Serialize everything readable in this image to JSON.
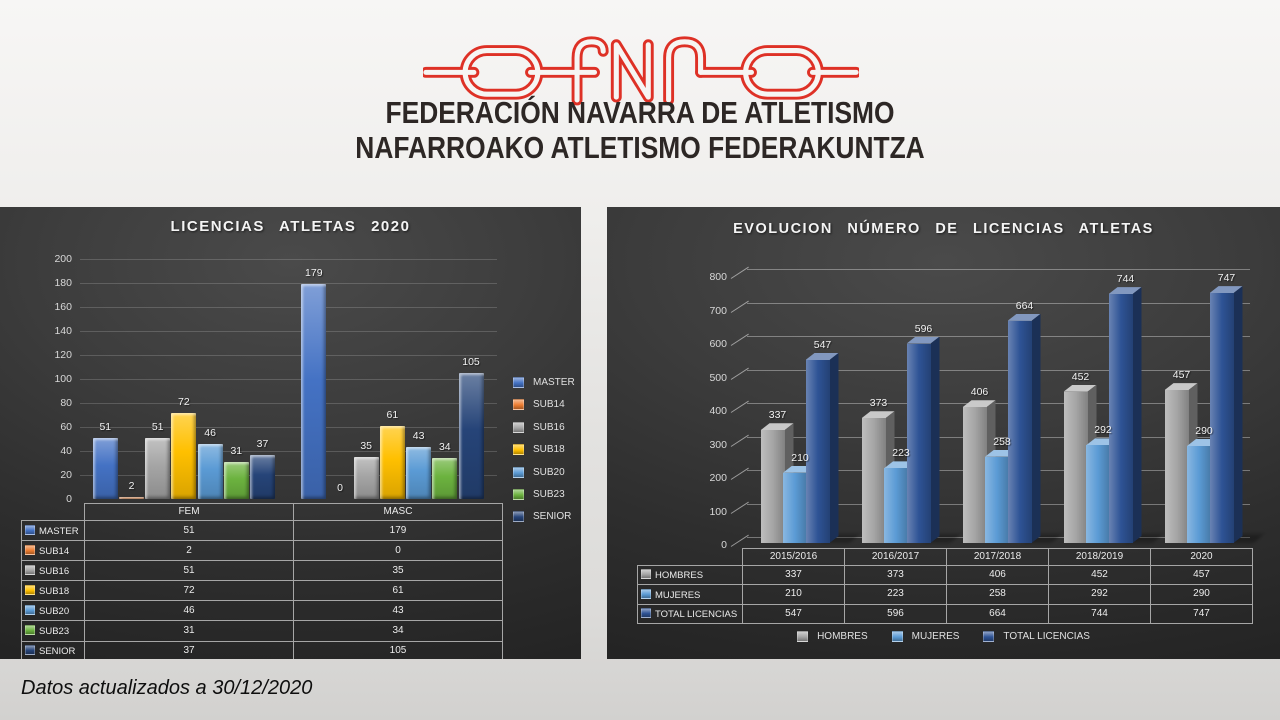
{
  "header": {
    "logo_color": "#DE3126",
    "title_line1": "FEDERACIÓN NAVARRA DE ATLETISMO",
    "title_line2": "NAFARROAKO ATLETISMO FEDERAKUNTZA"
  },
  "footer": {
    "note": "Datos actualizados a 30/12/2020"
  },
  "chart_data": [
    {
      "type": "bar",
      "title": "LICENCIAS ATLETAS 2020",
      "categories": [
        "FEM",
        "MASC"
      ],
      "series": [
        {
          "name": "MASTER",
          "color": "#4472C4",
          "values": [
            51,
            179
          ]
        },
        {
          "name": "SUB14",
          "color": "#ED7D31",
          "values": [
            2,
            0
          ]
        },
        {
          "name": "SUB16",
          "color": "#A5A5A5",
          "values": [
            51,
            35
          ]
        },
        {
          "name": "SUB18",
          "color": "#FFC000",
          "values": [
            72,
            61
          ]
        },
        {
          "name": "SUB20",
          "color": "#5B9BD5",
          "values": [
            46,
            43
          ]
        },
        {
          "name": "SUB23",
          "color": "#6CB33F",
          "values": [
            31,
            34
          ]
        },
        {
          "name": "SENIOR",
          "color": "#264478",
          "values": [
            37,
            105
          ]
        }
      ],
      "ylim": [
        0,
        200
      ],
      "ytick": 20,
      "grid": true,
      "legend_position": "right",
      "data_table": true
    },
    {
      "type": "bar3d",
      "title": "EVOLUCION NÚMERO DE LICENCIAS ATLETAS",
      "categories": [
        "2015/2016",
        "2016/2017",
        "2017/2018",
        "2018/2019",
        "2020"
      ],
      "series": [
        {
          "name": "HOMBRES",
          "color": "#A5A5A5",
          "values": [
            337,
            373,
            406,
            452,
            457
          ]
        },
        {
          "name": "MUJERES",
          "color": "#5B9BD5",
          "values": [
            210,
            223,
            258,
            292,
            290
          ]
        },
        {
          "name": "TOTAL LICENCIAS",
          "color": "#2E5395",
          "values": [
            547,
            596,
            664,
            744,
            747
          ]
        }
      ],
      "ylim": [
        0,
        800
      ],
      "ytick": 100,
      "grid": true,
      "legend_position": "bottom",
      "data_table": true
    }
  ]
}
